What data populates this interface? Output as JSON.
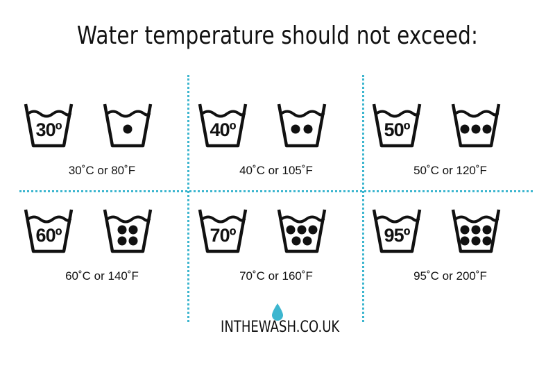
{
  "title": "Water temperature should not exceed:",
  "accent_color": "#3db6cf",
  "icon_color": "#111111",
  "cells": [
    {
      "temp_label": "30º",
      "dots": 1,
      "caption": "30˚C or 80˚F"
    },
    {
      "temp_label": "40º",
      "dots": 2,
      "caption": "40˚C or 105˚F"
    },
    {
      "temp_label": "50º",
      "dots": 3,
      "caption": "50˚C or 120˚F"
    },
    {
      "temp_label": "60º",
      "dots": 4,
      "caption": "60˚C or 140˚F"
    },
    {
      "temp_label": "70º",
      "dots": 5,
      "caption": "70˚C or 160˚F"
    },
    {
      "temp_label": "95º",
      "dots": 6,
      "caption": "95˚C or 200˚F"
    }
  ],
  "brand": {
    "name": "INTHEWASH.CO.UK",
    "icon": "water-drop-icon"
  }
}
